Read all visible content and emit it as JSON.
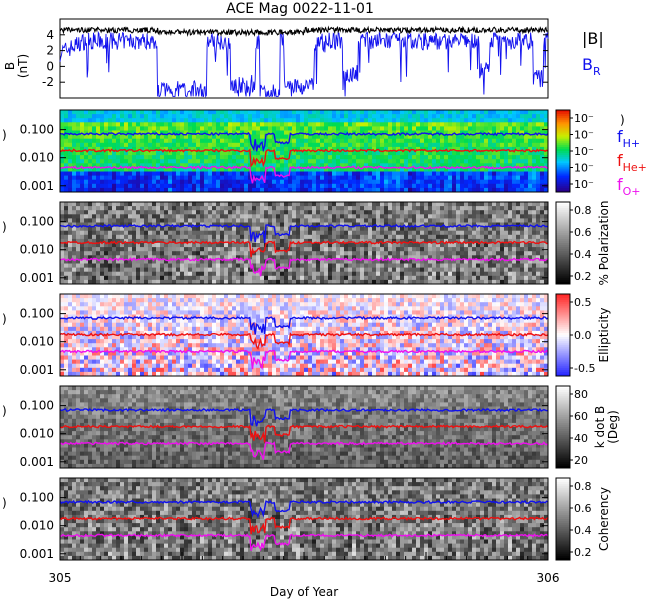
{
  "chart_data": {
    "type": "heatmap",
    "title": "ACE Mag 0022-11-01",
    "xlabel": "Day of Year",
    "x_ticks": [
      "305",
      "306"
    ],
    "x_range": [
      305,
      306
    ],
    "colors": {
      "bmag": "#000000",
      "br": "#1010ee",
      "fH": "#1010ee",
      "fHe": "#ee1010",
      "fO": "#ee10ee"
    },
    "field_panel": {
      "ylabel_line1": "B",
      "ylabel_line2": "(nT)",
      "y_ticks": [
        "4",
        "2",
        "0",
        "-2"
      ],
      "ylim": [
        -4,
        6
      ],
      "series": [
        {
          "name": "|B|",
          "name_sub": "",
          "baseline": 4.6
        },
        {
          "name": "B",
          "name_sub": "R",
          "baseline": 3.2
        }
      ]
    },
    "spectral_panels": [
      {
        "id": "power",
        "ylabel": ")",
        "y_ticks": [
          "0.100",
          "0.010",
          "0.001"
        ],
        "ylog": true,
        "cbar_label": ")",
        "cbar_ticks": [
          "10⁻",
          "10⁻",
          "10⁻",
          "10⁻",
          "10⁻"
        ],
        "colormap": "rainbow"
      },
      {
        "id": "polarization",
        "ylabel": ")",
        "y_ticks": [
          "0.100",
          "0.010",
          "0.001"
        ],
        "ylog": true,
        "cbar_label": "% Polarization",
        "cbar_ticks": [
          "0.8",
          "0.6",
          "0.4",
          "0.2"
        ],
        "colormap": "gray"
      },
      {
        "id": "ellipticity",
        "ylabel": ")",
        "y_ticks": [
          "0.100",
          "0.010",
          "0.001"
        ],
        "ylog": true,
        "cbar_label": "Ellipticity",
        "cbar_ticks": [
          "0.5",
          "0.0",
          "-0.5"
        ],
        "colormap": "bwr"
      },
      {
        "id": "kdotb",
        "ylabel": ")",
        "y_ticks": [
          "0.100",
          "0.010",
          "0.001"
        ],
        "ylog": true,
        "cbar_label_line1": "k dot B",
        "cbar_label_line2": "(Deg)",
        "cbar_ticks": [
          "80",
          "60",
          "40",
          "20"
        ],
        "colormap": "gray"
      },
      {
        "id": "coherency",
        "ylabel": ")",
        "y_ticks": [
          "0.100",
          "0.010",
          "0.001"
        ],
        "ylog": true,
        "cbar_label": "Coherency",
        "cbar_ticks": [
          "0.8",
          "0.6",
          "0.4",
          "0.2"
        ],
        "colormap": "gray"
      }
    ],
    "gyro_lines": [
      {
        "name": "f",
        "name_sub": "H+",
        "frequency": 0.07
      },
      {
        "name": "f",
        "name_sub": "He+",
        "frequency": 0.018
      },
      {
        "name": "f",
        "name_sub": "O+",
        "frequency": 0.0045
      }
    ]
  }
}
